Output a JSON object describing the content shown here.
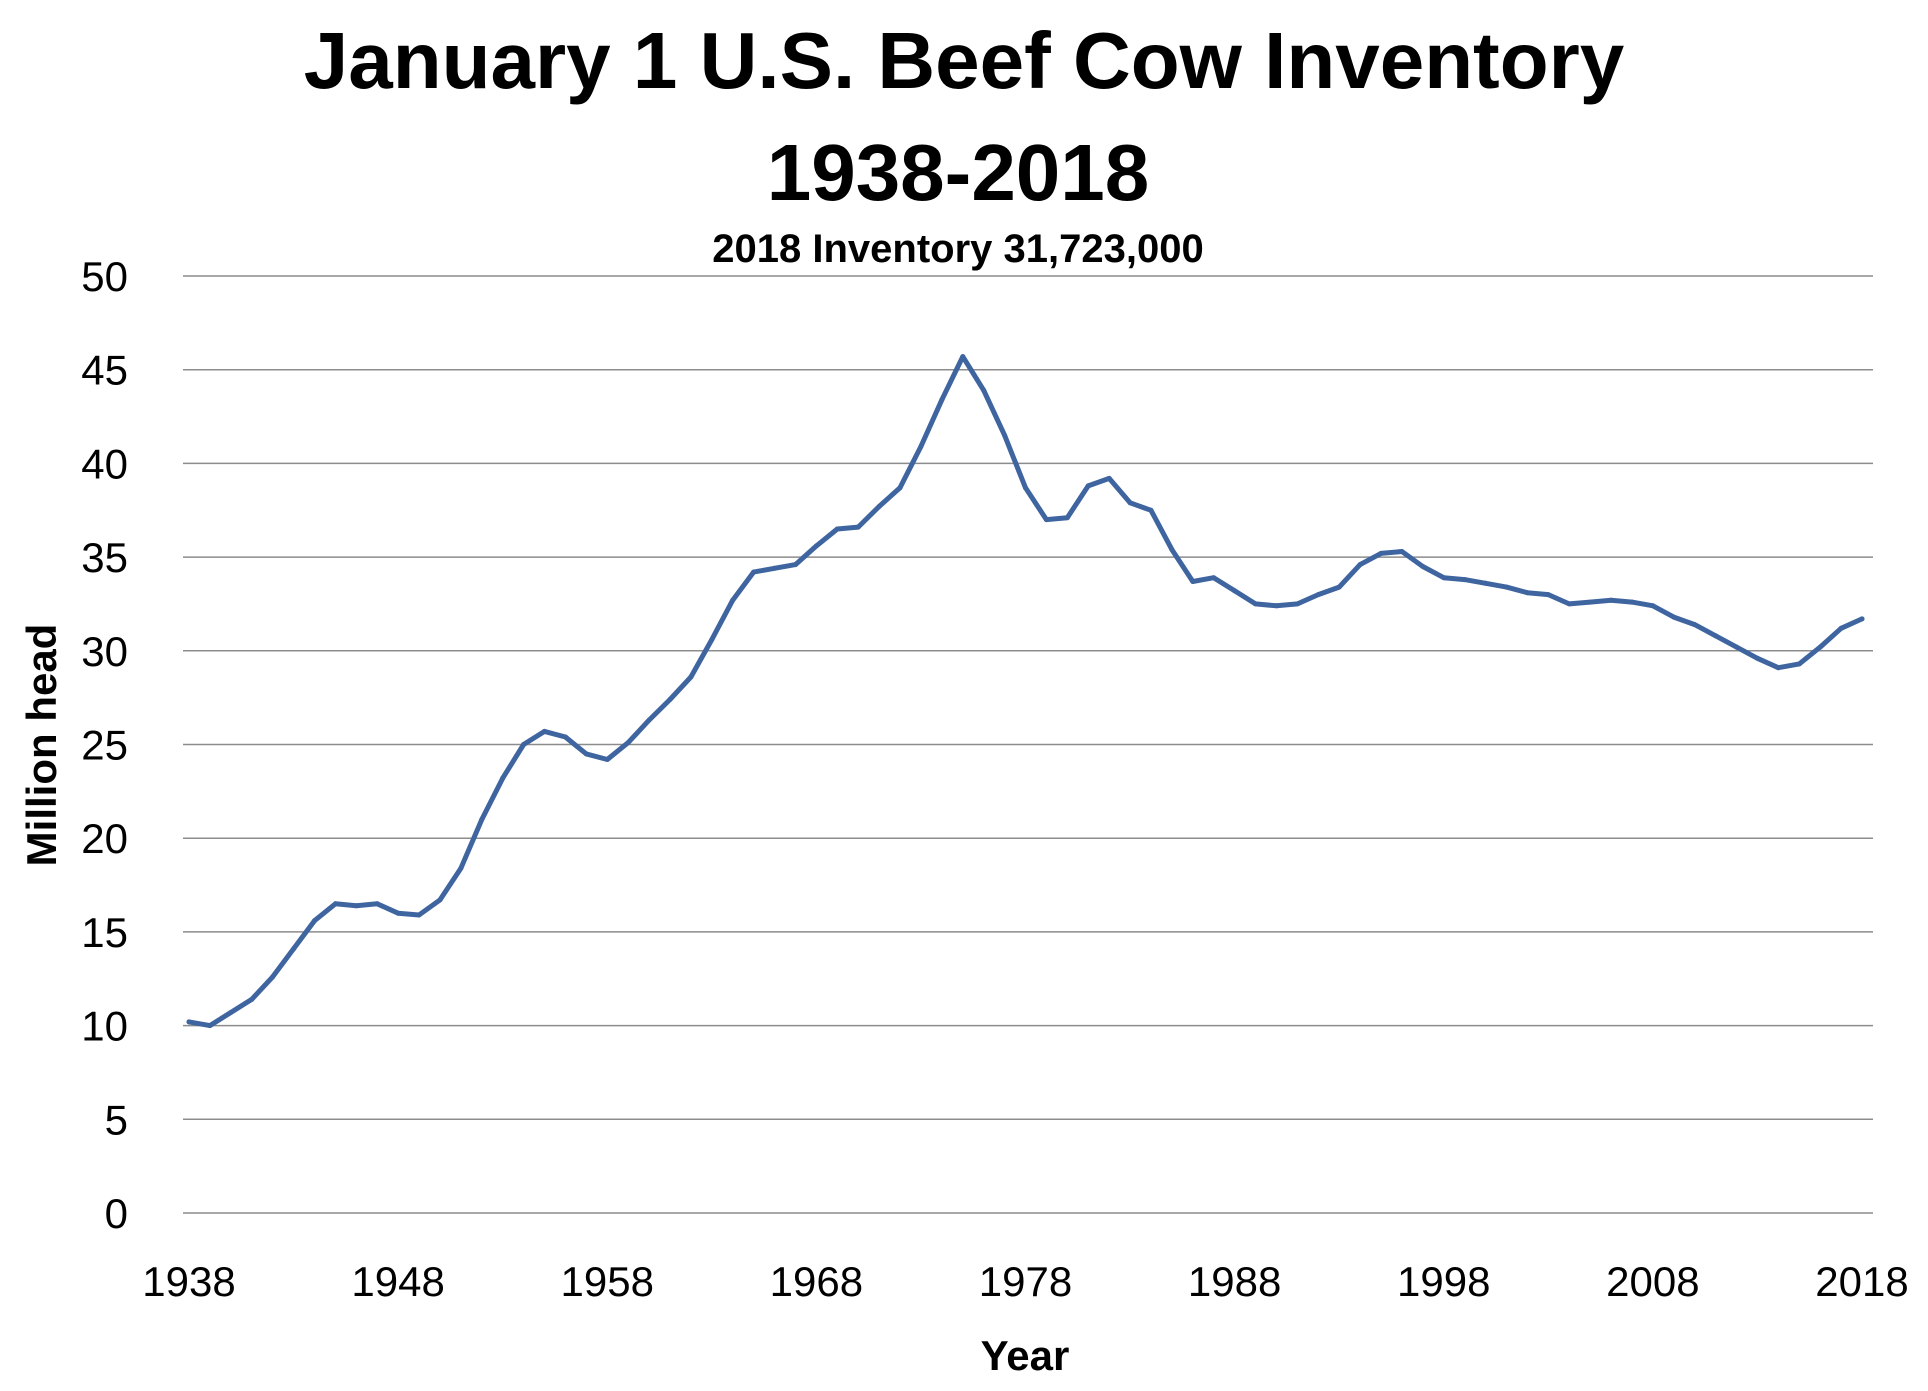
{
  "chart_data": {
    "type": "line",
    "title_line1": "January 1 U.S. Beef Cow Inventory",
    "title_line2": "1938-2018",
    "subtitle": "2018 Inventory 31,723,000",
    "xlabel": "Year",
    "ylabel": "Million head",
    "xlim": [
      1938,
      2018
    ],
    "ylim": [
      0,
      50
    ],
    "grid": true,
    "y_ticks": [
      0,
      5,
      10,
      15,
      20,
      25,
      30,
      35,
      40,
      45,
      50
    ],
    "x_ticks": [
      1938,
      1948,
      1958,
      1968,
      1978,
      1988,
      1998,
      2008,
      2018
    ],
    "series_color": "#3F65A0",
    "x": [
      1938,
      1939,
      1940,
      1941,
      1942,
      1943,
      1944,
      1945,
      1946,
      1947,
      1948,
      1949,
      1950,
      1951,
      1952,
      1953,
      1954,
      1955,
      1956,
      1957,
      1958,
      1959,
      1960,
      1961,
      1962,
      1963,
      1964,
      1965,
      1966,
      1967,
      1968,
      1969,
      1970,
      1971,
      1972,
      1973,
      1974,
      1975,
      1976,
      1977,
      1978,
      1979,
      1980,
      1981,
      1982,
      1983,
      1984,
      1985,
      1986,
      1987,
      1988,
      1989,
      1990,
      1991,
      1992,
      1993,
      1994,
      1995,
      1996,
      1997,
      1998,
      1999,
      2000,
      2001,
      2002,
      2003,
      2004,
      2005,
      2006,
      2007,
      2008,
      2009,
      2010,
      2011,
      2012,
      2013,
      2014,
      2015,
      2016,
      2017,
      2018
    ],
    "y": [
      10.2,
      10.0,
      10.7,
      11.4,
      12.6,
      14.1,
      15.6,
      16.5,
      16.4,
      16.5,
      16.0,
      15.9,
      16.7,
      18.4,
      21.0,
      23.2,
      25.0,
      25.7,
      25.4,
      24.5,
      24.2,
      25.1,
      26.3,
      27.4,
      28.6,
      30.6,
      32.7,
      34.2,
      34.4,
      34.6,
      35.6,
      36.5,
      36.6,
      37.7,
      38.7,
      40.9,
      43.4,
      45.7,
      43.9,
      41.5,
      38.7,
      37.0,
      37.1,
      38.8,
      39.2,
      37.9,
      37.5,
      35.4,
      33.7,
      33.9,
      33.2,
      32.5,
      32.4,
      32.5,
      33.0,
      33.4,
      34.6,
      35.2,
      35.3,
      34.5,
      33.9,
      33.8,
      33.6,
      33.4,
      33.1,
      33.0,
      32.5,
      32.6,
      32.7,
      32.6,
      32.4,
      31.8,
      31.4,
      30.8,
      30.2,
      29.6,
      29.1,
      29.3,
      30.2,
      31.2,
      31.7
    ]
  }
}
